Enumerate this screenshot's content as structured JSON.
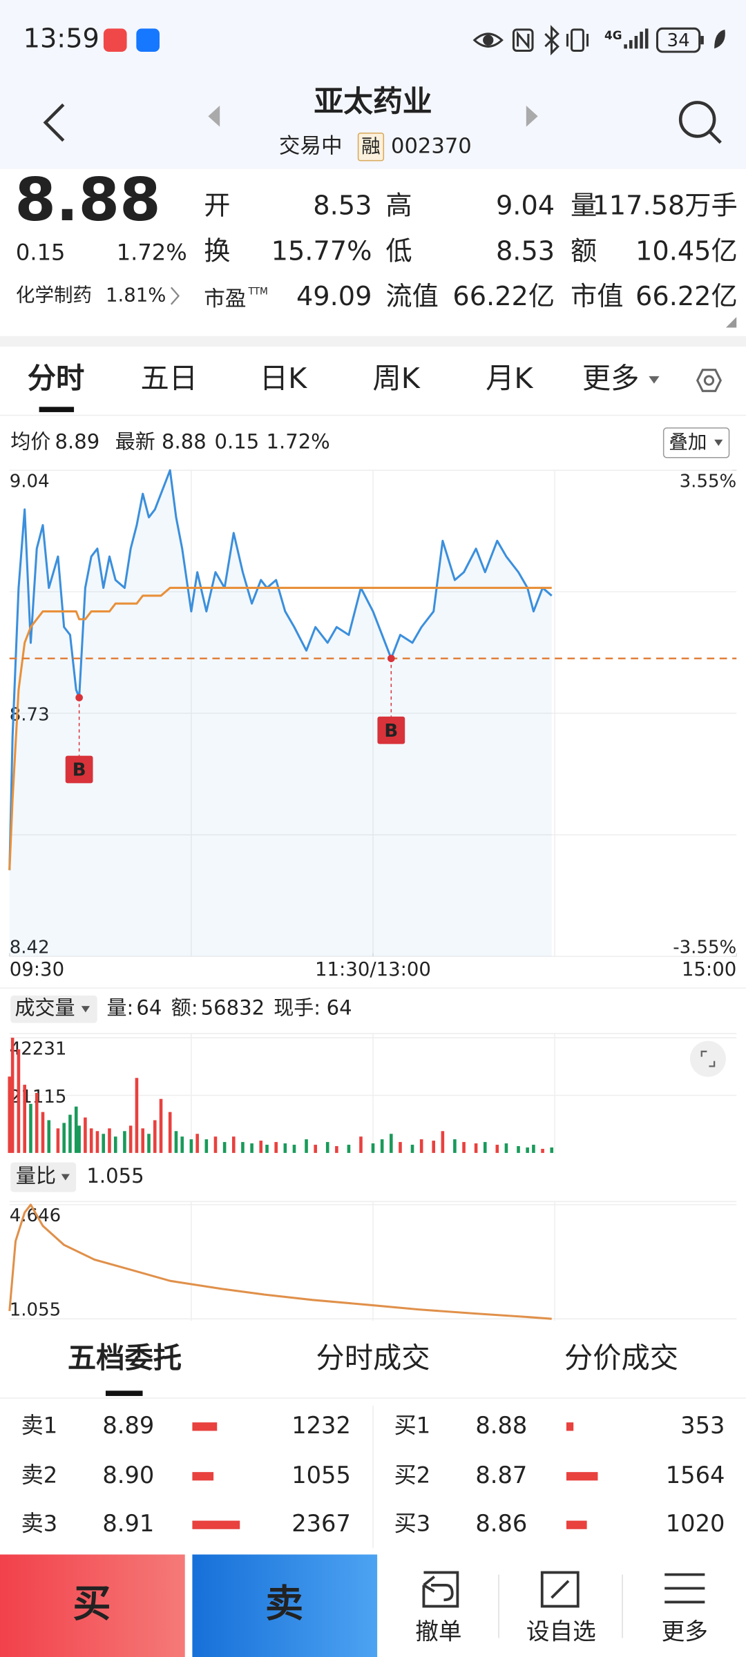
{
  "status_bar": {
    "time": "13:59",
    "network": "4G",
    "battery": "34"
  },
  "header": {
    "title": "亚太药业",
    "status": "交易中",
    "badge": "融",
    "code": "002370"
  },
  "quote": {
    "price": "8.88",
    "change": "0.15",
    "change_pct": "1.72%",
    "sector": "化学制药",
    "sector_pct": "1.81%",
    "stats": [
      {
        "label": "开",
        "value": "8.53",
        "color": "#1a9a5a"
      },
      {
        "label": "高",
        "value": "9.04",
        "color": "#e03030"
      },
      {
        "label": "量",
        "value": "117.58万手",
        "color": "#222222"
      },
      {
        "label": "换",
        "value": "15.77%",
        "color": "#222222"
      },
      {
        "label": "低",
        "value": "8.53",
        "color": "#1a9a5a"
      },
      {
        "label": "额",
        "value": "10.45亿",
        "color": "#222222"
      },
      {
        "label": "市盈",
        "sup": "TTM",
        "value": "49.09",
        "color": "#222222"
      },
      {
        "label": "流值",
        "value": "66.22亿",
        "color": "#222222"
      },
      {
        "label": "市值",
        "value": "66.22亿",
        "color": "#222222"
      }
    ]
  },
  "tabs": {
    "items": [
      "分时",
      "五日",
      "日K",
      "周K",
      "月K",
      "更多"
    ],
    "active": 0
  },
  "info_bar": {
    "avg": "8.89",
    "last": "8.88",
    "change": "0.15",
    "change_pct": "1.72%",
    "overlay": "叠加"
  },
  "volume_bar": {
    "title": "成交量",
    "vol_label": "量:",
    "vol": "64",
    "amount_label": "额:",
    "amount": "56832",
    "hand_label": "现手:",
    "hand": "64"
  },
  "ratio_bar": {
    "title": "量比",
    "value": "1.055"
  },
  "chart_data": [
    {
      "type": "line",
      "x": [
        0,
        1,
        3,
        5,
        7,
        9,
        11,
        13,
        16,
        18,
        20,
        22,
        23,
        25,
        27,
        29,
        31,
        33,
        35,
        38,
        40,
        42,
        44,
        46,
        48,
        50,
        53,
        55,
        57,
        60,
        62,
        65,
        68,
        71,
        74,
        77,
        80,
        83,
        85,
        88,
        91,
        94,
        98,
        101,
        105,
        108,
        112,
        116,
        120,
        123,
        126,
        129,
        133,
        136,
        140,
        143,
        147,
        150,
        154,
        157,
        161,
        164,
        168,
        171,
        173,
        176,
        179
      ],
      "xlim": [
        0,
        240
      ],
      "xticks": [
        {
          "value": 0,
          "label": "09:30"
        },
        {
          "value": 120,
          "label": "11:30/13:00"
        },
        {
          "value": 240,
          "label": "15:00"
        }
      ],
      "ylim": [
        8.42,
        9.04
      ],
      "yticks": [
        8.42,
        8.73,
        9.04
      ],
      "y2lim": [
        -3.55,
        3.55
      ],
      "y2ticks": [
        {
          "value": -3.55,
          "label": "-3.55%"
        },
        {
          "value": 3.55,
          "label": "3.55%"
        }
      ],
      "grid": true,
      "area": true,
      "up_color": "#e03030",
      "down_color": "#1a9a5a",
      "series": [
        {
          "name": "最新",
          "color": "#3b8fdc",
          "values": [
            8.53,
            8.7,
            8.89,
            8.99,
            8.82,
            8.94,
            8.97,
            8.89,
            8.93,
            8.84,
            8.83,
            8.76,
            8.75,
            8.89,
            8.93,
            8.94,
            8.89,
            8.93,
            8.9,
            8.89,
            8.94,
            8.97,
            9.01,
            8.98,
            8.99,
            9.01,
            9.04,
            8.98,
            8.94,
            8.86,
            8.91,
            8.86,
            8.91,
            8.89,
            8.96,
            8.91,
            8.87,
            8.9,
            8.89,
            8.9,
            8.86,
            8.84,
            8.81,
            8.84,
            8.82,
            8.84,
            8.83,
            8.89,
            8.86,
            8.83,
            8.8,
            8.83,
            8.82,
            8.84,
            8.86,
            8.95,
            8.9,
            8.91,
            8.94,
            8.91,
            8.95,
            8.93,
            8.91,
            8.89,
            8.86,
            8.89,
            8.88
          ]
        },
        {
          "name": "均价",
          "color": "#e8903a",
          "values": [
            8.53,
            8.62,
            8.76,
            8.82,
            8.84,
            8.85,
            8.86,
            8.86,
            8.86,
            8.86,
            8.86,
            8.86,
            8.85,
            8.85,
            8.86,
            8.86,
            8.86,
            8.86,
            8.87,
            8.87,
            8.87,
            8.87,
            8.88,
            8.88,
            8.88,
            8.88,
            8.89,
            8.89,
            8.89,
            8.89,
            8.89,
            8.89,
            8.89,
            8.89,
            8.89,
            8.89,
            8.89,
            8.89,
            8.89,
            8.89,
            8.89,
            8.89,
            8.89,
            8.89,
            8.89,
            8.89,
            8.89,
            8.89,
            8.89,
            8.89,
            8.89,
            8.89,
            8.89,
            8.89,
            8.89,
            8.89,
            8.89,
            8.89,
            8.89,
            8.89,
            8.89,
            8.89,
            8.89,
            8.89,
            8.89,
            8.89,
            8.89
          ]
        }
      ],
      "markers": [
        {
          "label": "B",
          "x": 23,
          "value": 8.75
        },
        {
          "label": "B",
          "x": 126,
          "value": 8.8
        }
      ]
    },
    {
      "type": "bar",
      "x": [
        0,
        1,
        3,
        5,
        7,
        9,
        11,
        13,
        16,
        18,
        20,
        22,
        23,
        25,
        27,
        29,
        31,
        33,
        35,
        38,
        40,
        42,
        44,
        46,
        48,
        50,
        53,
        55,
        57,
        60,
        62,
        65,
        68,
        71,
        74,
        77,
        80,
        83,
        85,
        88,
        91,
        94,
        98,
        101,
        105,
        108,
        112,
        116,
        120,
        123,
        126,
        129,
        133,
        136,
        140,
        143,
        147,
        150,
        154,
        157,
        161,
        164,
        168,
        171,
        173,
        176,
        179
      ],
      "xlim": [
        0,
        240
      ],
      "ylim": [
        0,
        42231
      ],
      "yticks": [
        21115,
        42231
      ],
      "up_color": "#e8413e",
      "down_color": "#1a9a5a",
      "values": [
        28000,
        42231,
        38000,
        25000,
        18000,
        22000,
        15000,
        12000,
        9000,
        11000,
        14000,
        17000,
        10000,
        13000,
        9000,
        8000,
        7000,
        9000,
        6000,
        8000,
        10000,
        27500,
        9000,
        7000,
        12000,
        19800,
        15000,
        8000,
        6000,
        5000,
        7000,
        5000,
        6000,
        4000,
        6000,
        4000,
        3500,
        4500,
        3000,
        4000,
        3500,
        3000,
        5000,
        3000,
        4000,
        2500,
        3000,
        6000,
        3500,
        5000,
        7000,
        4000,
        3000,
        5000,
        4500,
        8000,
        5000,
        4000,
        3500,
        4000,
        3000,
        3500,
        2500,
        2000,
        3000,
        1500,
        2000
      ]
    },
    {
      "type": "line",
      "x": [
        0,
        2,
        5,
        7,
        11,
        18,
        28,
        40,
        53,
        70,
        84,
        100,
        119,
        135,
        154,
        170,
        179
      ],
      "xlim": [
        0,
        240
      ],
      "ylim": [
        1.055,
        4.646
      ],
      "yticks": [
        1.055,
        4.646
      ],
      "color": "#e0904a",
      "values": [
        1.3,
        3.5,
        4.4,
        4.646,
        3.98,
        3.38,
        2.92,
        2.6,
        2.25,
        2.0,
        1.82,
        1.65,
        1.49,
        1.35,
        1.22,
        1.12,
        1.055
      ]
    }
  ],
  "orderbook": {
    "tabs": [
      "五档委托",
      "分时成交",
      "分价成交"
    ],
    "active": 0,
    "bar_color": "#e8413e",
    "asks": [
      {
        "label": "卖1",
        "price": "8.89",
        "volume": 1232
      },
      {
        "label": "卖2",
        "price": "8.90",
        "volume": 1055
      },
      {
        "label": "卖3",
        "price": "8.91",
        "volume": 2367
      }
    ],
    "bids": [
      {
        "label": "买1",
        "price": "8.88",
        "volume": 353
      },
      {
        "label": "买2",
        "price": "8.87",
        "volume": 1564
      },
      {
        "label": "买3",
        "price": "8.86",
        "volume": 1020
      }
    ]
  },
  "bottom_bar": {
    "buy": "买",
    "sell": "卖",
    "actions": [
      "撤单",
      "设自选",
      "更多"
    ]
  }
}
